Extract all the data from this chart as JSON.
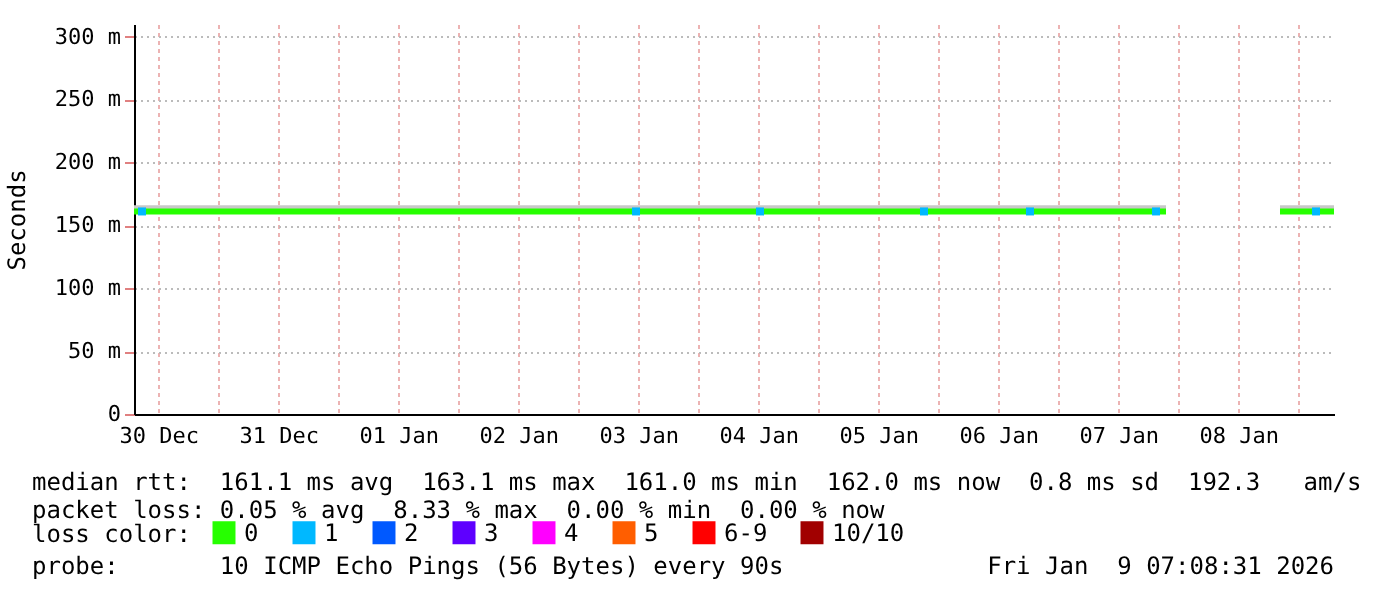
{
  "chart_data": {
    "type": "line",
    "ylabel": "Seconds",
    "xlim": [
      "2025-12-30T07:08",
      "2026-01-09T07:08"
    ],
    "xticks": [
      {
        "value": "2025-12-30T12:00",
        "label": "30 Dec"
      },
      {
        "value": "2025-12-31T00:00",
        "label": null
      },
      {
        "value": "2025-12-31T12:00",
        "label": "31 Dec"
      },
      {
        "value": "2026-01-01T00:00",
        "label": null
      },
      {
        "value": "2026-01-01T12:00",
        "label": "01 Jan"
      },
      {
        "value": "2026-01-02T00:00",
        "label": null
      },
      {
        "value": "2026-01-02T12:00",
        "label": "02 Jan"
      },
      {
        "value": "2026-01-03T00:00",
        "label": null
      },
      {
        "value": "2026-01-03T12:00",
        "label": "03 Jan"
      },
      {
        "value": "2026-01-04T00:00",
        "label": null
      },
      {
        "value": "2026-01-04T12:00",
        "label": "04 Jan"
      },
      {
        "value": "2026-01-05T00:00",
        "label": null
      },
      {
        "value": "2026-01-05T12:00",
        "label": "05 Jan"
      },
      {
        "value": "2026-01-06T00:00",
        "label": null
      },
      {
        "value": "2026-01-06T12:00",
        "label": "06 Jan"
      },
      {
        "value": "2026-01-07T00:00",
        "label": null
      },
      {
        "value": "2026-01-07T12:00",
        "label": "07 Jan"
      },
      {
        "value": "2026-01-08T00:00",
        "label": null
      },
      {
        "value": "2026-01-08T12:00",
        "label": "08 Jan"
      },
      {
        "value": "2026-01-09T00:00",
        "label": null
      }
    ],
    "ylim": [
      0,
      310
    ],
    "yticks": [
      0,
      {
        "value": 50,
        "label": "50 m"
      },
      {
        "value": 100,
        "label": "100 m"
      },
      {
        "value": 150,
        "label": "150 m"
      },
      {
        "value": 200,
        "label": "200 m"
      },
      {
        "value": 250,
        "label": "250 m"
      },
      {
        "value": 300,
        "label": "300 m"
      }
    ],
    "grid": true,
    "legend": "bottom",
    "legend_title": "loss color:",
    "series": [
      {
        "name": "0",
        "color": "#26ff00",
        "x": [
          "2025-12-30T07:08",
          "2025-12-31T12:00",
          "2026-01-02T00:00",
          "2026-01-03T12:00",
          "2026-01-05T00:00",
          "2026-01-06T12:00",
          "2026-01-07T21:32",
          "2026-01-08T09:00",
          "2026-01-08T20:20",
          "2026-01-09T07:08"
        ],
        "values": [
          161,
          161,
          161,
          161,
          161,
          161,
          161,
          null,
          161,
          161
        ],
        "lower": [
          160,
          160,
          160,
          160,
          160,
          160,
          160,
          null,
          160,
          160
        ],
        "upper": [
          166,
          166,
          166,
          166,
          166,
          166,
          166,
          null,
          166,
          166
        ]
      },
      {
        "name": "1",
        "color": "#00b8ff",
        "type": "scatter",
        "x": [
          "2025-12-30T08:44",
          "2026-01-03T11:32",
          "2026-01-04T12:20",
          "2026-01-05T21:08",
          "2026-01-06T18:20",
          "2026-01-07T19:32",
          "2026-01-09T03:32"
        ],
        "values": [
          161,
          161,
          161,
          161,
          161,
          161,
          161
        ]
      },
      {
        "name": "2",
        "color": "#0059ff",
        "type": "scatter"
      },
      {
        "name": "3",
        "color": "#5e00ff",
        "type": "scatter"
      },
      {
        "name": "4",
        "color": "#ff00ff",
        "type": "scatter"
      },
      {
        "name": "5",
        "color": "#ff5e00",
        "type": "scatter"
      },
      {
        "name": "6-9",
        "color": "#ff0000",
        "type": "scatter"
      },
      {
        "name": "10/10",
        "color": "#a10000",
        "type": "scatter"
      }
    ],
    "annotations": [
      "median rtt:  161.1 ms avg  163.1 ms max  161.0 ms min  162.0 ms now  0.8 ms sd  192.3   am/s",
      "packet loss: 0.05 % avg  8.33 % max  0.00 % min  0.00 % now",
      "probe:       10 ICMP Echo Pings (56 Bytes) every 90s",
      "Fri Jan  9 07:08:31 2026"
    ]
  }
}
